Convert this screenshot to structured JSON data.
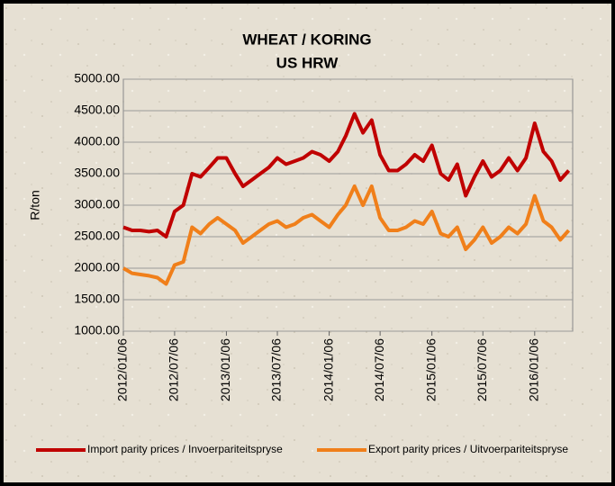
{
  "chart_data": {
    "type": "line",
    "title": "WHEAT / KORING",
    "subtitle": "US HRW",
    "y_label": "R/ton",
    "x": [
      "2012/01/06",
      "2012/02/06",
      "2012/03/06",
      "2012/04/06",
      "2012/05/06",
      "2012/06/06",
      "2012/07/06",
      "2012/08/06",
      "2012/09/06",
      "2012/10/06",
      "2012/11/06",
      "2012/12/06",
      "2013/01/06",
      "2013/02/06",
      "2013/03/06",
      "2013/04/06",
      "2013/05/06",
      "2013/06/06",
      "2013/07/06",
      "2013/08/06",
      "2013/09/06",
      "2013/10/06",
      "2013/11/06",
      "2013/12/06",
      "2014/01/06",
      "2014/02/06",
      "2014/03/06",
      "2014/04/06",
      "2014/05/06",
      "2014/06/06",
      "2014/07/06",
      "2014/08/06",
      "2014/09/06",
      "2014/10/06",
      "2014/11/06",
      "2014/12/06",
      "2015/01/06",
      "2015/02/06",
      "2015/03/06",
      "2015/04/06",
      "2015/05/06",
      "2015/06/06",
      "2015/07/06",
      "2015/08/06",
      "2015/09/06",
      "2015/10/06",
      "2015/11/06",
      "2015/12/06",
      "2016/01/06",
      "2016/02/06",
      "2016/03/06",
      "2016/04/06",
      "2016/05/06"
    ],
    "series": [
      {
        "name": "Import parity prices / Invoerpariteitspryse",
        "color": "#c00000",
        "values": [
          2650,
          2600,
          2600,
          2580,
          2600,
          2500,
          2900,
          3000,
          3500,
          3450,
          3600,
          3750,
          3750,
          3500,
          3300,
          3400,
          3500,
          3600,
          3750,
          3650,
          3700,
          3750,
          3850,
          3800,
          3700,
          3850,
          4100,
          4450,
          4150,
          4350,
          3800,
          3550,
          3550,
          3650,
          3800,
          3700,
          3950,
          3500,
          3400,
          3650,
          3150,
          3450,
          3700,
          3450,
          3550,
          3750,
          3550,
          3750,
          4300,
          3850,
          3700,
          3400,
          3550
        ]
      },
      {
        "name": "Export parity prices / Uitvoerpariteitspryse",
        "color": "#f07f1a",
        "values": [
          2000,
          1920,
          1900,
          1880,
          1850,
          1750,
          2050,
          2100,
          2650,
          2550,
          2700,
          2800,
          2700,
          2600,
          2400,
          2500,
          2600,
          2700,
          2750,
          2650,
          2700,
          2800,
          2850,
          2750,
          2650,
          2850,
          3000,
          3300,
          3000,
          3300,
          2800,
          2600,
          2600,
          2650,
          2750,
          2700,
          2900,
          2550,
          2500,
          2650,
          2300,
          2450,
          2650,
          2400,
          2500,
          2650,
          2550,
          2700,
          3150,
          2750,
          2650,
          2450,
          2600
        ]
      }
    ],
    "xlim": [
      "2012/01/06",
      "2016/05/20"
    ],
    "xticks": [
      "2012/01/06",
      "2012/07/06",
      "2013/01/06",
      "2013/07/06",
      "2014/01/06",
      "2014/07/06",
      "2015/01/06",
      "2015/07/06",
      "2016/01/06"
    ],
    "ylim": [
      1000,
      5000
    ],
    "yticks": [
      {
        "value": 1000,
        "label": "1000.00"
      },
      {
        "value": 1500,
        "label": "1500.00"
      },
      {
        "value": 2000,
        "label": "2000.00"
      },
      {
        "value": 2500,
        "label": "2500.00"
      },
      {
        "value": 3000,
        "label": "3000.00"
      },
      {
        "value": 3500,
        "label": "3500.00"
      },
      {
        "value": 4000,
        "label": "4000.00"
      },
      {
        "value": 4500,
        "label": "4500.00"
      },
      {
        "value": 5000,
        "label": "5000.00"
      }
    ],
    "grid": true,
    "legend": "bottom"
  }
}
